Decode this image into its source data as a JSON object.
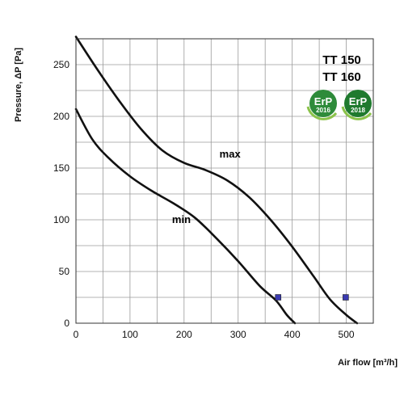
{
  "chart_data": {
    "type": "line",
    "xlabel": "Air flow [m³/h]",
    "ylabel": "Pressure, ΔP [Pa]",
    "xlim": [
      0,
      550
    ],
    "ylim": [
      0,
      275
    ],
    "x_ticks": [
      0,
      100,
      200,
      300,
      400,
      500
    ],
    "y_ticks": [
      0,
      50,
      100,
      150,
      200,
      250
    ],
    "grid": true,
    "models": [
      "TT 150",
      "TT 160"
    ],
    "badges": [
      {
        "text": "ErP",
        "year": "2016",
        "color": "#2e8b3a"
      },
      {
        "text": "ErP",
        "year": "2018",
        "color": "#1f7a2e"
      }
    ],
    "series": [
      {
        "name": "max",
        "x": [
          0,
          40,
          80,
          120,
          160,
          200,
          240,
          280,
          320,
          360,
          400,
          440,
          470,
          500,
          520
        ],
        "y": [
          277,
          245,
          215,
          188,
          167,
          155,
          148,
          138,
          122,
          100,
          74,
          45,
          23,
          8,
          0
        ],
        "marker": {
          "x": 499,
          "y": 25
        }
      },
      {
        "name": "min",
        "x": [
          0,
          30,
          60,
          100,
          140,
          180,
          220,
          260,
          300,
          340,
          370,
          390,
          405
        ],
        "y": [
          207,
          178,
          160,
          142,
          128,
          116,
          102,
          82,
          60,
          36,
          22,
          8,
          0
        ],
        "marker": {
          "x": 374,
          "y": 25
        }
      }
    ],
    "colors": {
      "curve": "#111111",
      "marker": "#3a3ab0",
      "grid": "#9a9a9a"
    }
  }
}
